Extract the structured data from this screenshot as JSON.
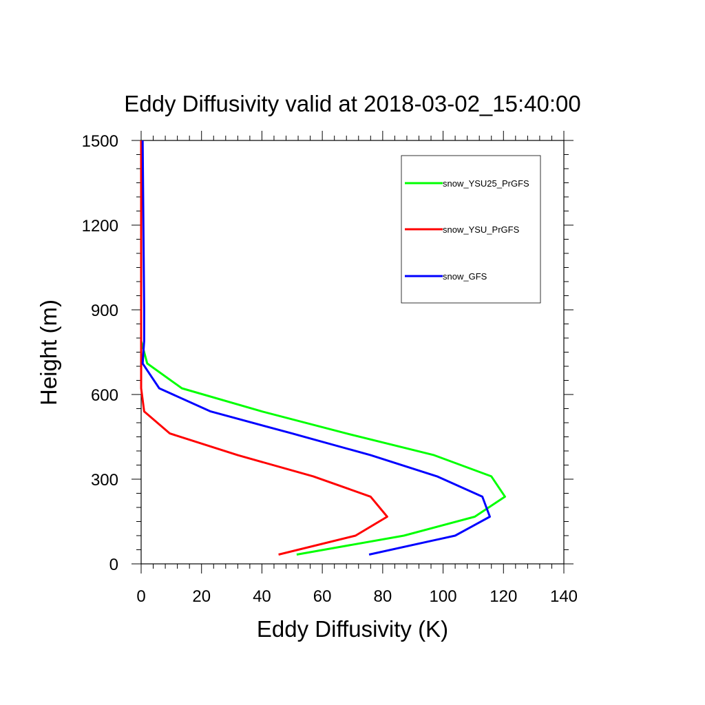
{
  "chart_data": {
    "type": "line",
    "title": "Eddy Diffusivity valid at 2018-03-02_15:40:00",
    "xlabel": "Eddy Diffusivity (K)",
    "ylabel": "Height (m)",
    "xlim": [
      0,
      140
    ],
    "ylim": [
      0,
      1500
    ],
    "xticks": [
      0,
      20,
      40,
      60,
      80,
      100,
      120,
      140
    ],
    "yticks": [
      0,
      300,
      600,
      900,
      1200,
      1500
    ],
    "grid": false,
    "legend_position": "top-right",
    "series": [
      {
        "name": "snow_YSU25_PrGFS",
        "color": "#00ff00",
        "points": [
          [
            51.5,
            33
          ],
          [
            87,
            100
          ],
          [
            110.5,
            167
          ],
          [
            120.5,
            238
          ],
          [
            116,
            310
          ],
          [
            97,
            385
          ],
          [
            68,
            462
          ],
          [
            40,
            540
          ],
          [
            13.5,
            622
          ],
          [
            2,
            710
          ],
          [
            0,
            790
          ],
          [
            0,
            1500
          ]
        ]
      },
      {
        "name": "snow_YSU_PrGFS",
        "color": "#ff0000",
        "points": [
          [
            45.5,
            33
          ],
          [
            71,
            100
          ],
          [
            81.5,
            167
          ],
          [
            76,
            238
          ],
          [
            57,
            310
          ],
          [
            32,
            385
          ],
          [
            9.5,
            462
          ],
          [
            1,
            540
          ],
          [
            0,
            622
          ],
          [
            0,
            710
          ],
          [
            0,
            790
          ],
          [
            0,
            1500
          ]
        ]
      },
      {
        "name": "snow_GFS",
        "color": "#0000ff",
        "points": [
          [
            75.5,
            33
          ],
          [
            104,
            100
          ],
          [
            115.5,
            167
          ],
          [
            113,
            238
          ],
          [
            98,
            310
          ],
          [
            76,
            385
          ],
          [
            50,
            462
          ],
          [
            23,
            540
          ],
          [
            6,
            622
          ],
          [
            0.5,
            710
          ],
          [
            1,
            790
          ],
          [
            1,
            900
          ],
          [
            0.5,
            1500
          ]
        ]
      }
    ]
  }
}
